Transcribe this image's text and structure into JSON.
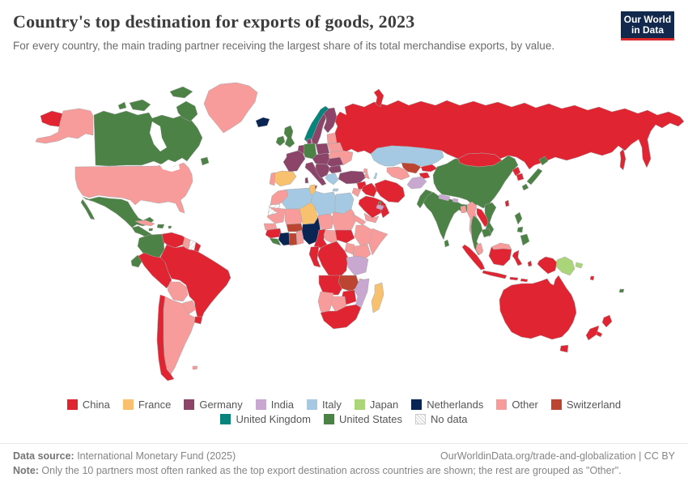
{
  "header": {
    "title": "Country's top destination for exports of goods, 2023",
    "subtitle": "For every country, the main trading partner receiving the largest share of its total merchandise exports, by value.",
    "logo_line1": "Our World",
    "logo_line2": "in Data"
  },
  "chart_data": {
    "type": "choropleth",
    "title": "Country's top destination for exports of goods, 2023",
    "legend": [
      {
        "label": "China",
        "color": "#e12431"
      },
      {
        "label": "France",
        "color": "#f8c16f"
      },
      {
        "label": "Germany",
        "color": "#8c4569"
      },
      {
        "label": "India",
        "color": "#c8a7d0"
      },
      {
        "label": "Italy",
        "color": "#a6c9e3"
      },
      {
        "label": "Japan",
        "color": "#aad579"
      },
      {
        "label": "Netherlands",
        "color": "#0a2553"
      },
      {
        "label": "Other",
        "color": "#f89b9b"
      },
      {
        "label": "Switzerland",
        "color": "#bb4530"
      },
      {
        "label": "United Kingdom",
        "color": "#07857c"
      },
      {
        "label": "United States",
        "color": "#4c8245"
      }
    ],
    "no_data_label": "No data",
    "regions": {
      "russia-chukotka": "China",
      "alaska": "Other",
      "canada": "United States",
      "canada-baffin": "United States",
      "canada-victoria": "United States",
      "canada-ellesmere": "United States",
      "canada-banks": "United States",
      "newfoundland": "United States",
      "greenland": "Other",
      "iceland": "Netherlands",
      "usa": "Other",
      "mexico": "United States",
      "baja": "United States",
      "central-america": "United States",
      "panama": "China",
      "cuba": "Other",
      "hispaniola": "United States",
      "jamaica": "United States",
      "puerto-rico": "United States",
      "colombia": "United States",
      "ecuador": "United States",
      "venezuela": "China",
      "guyana": "Other",
      "suriname": "No data",
      "french-guiana": "China",
      "brazil": "China",
      "peru": "China",
      "bolivia": "Other",
      "paraguay": "Other",
      "uruguay": "China",
      "chile": "China",
      "argentina": "Other",
      "falklands": "Other",
      "norway": "United Kingdom",
      "sweden": "Germany",
      "finland": "Germany",
      "denmark": "Germany",
      "united-kingdom": "United States",
      "ireland": "United States",
      "baltics": "Other",
      "belarus": "Other",
      "poland": "Germany",
      "germany": "United States",
      "benelux": "Germany",
      "france": "Germany",
      "spain": "France",
      "portugal": "Other",
      "italy": "Germany",
      "sicily": "Germany",
      "sardinia": "Germany",
      "central-europe": "Germany",
      "ukraine": "Other",
      "romania": "Germany",
      "balkans": "Germany",
      "bulgaria": "Germany",
      "greece": "Italy",
      "crete": "Italy",
      "turkey": "Germany",
      "georgia": "Other",
      "armenia": "Other",
      "azerbaijan": "Italy",
      "russia": "China",
      "novaya-zemlya": "China",
      "sakhalin": "China",
      "kazakhstan": "Italy",
      "turkmenistan": "Other",
      "uzbekistan": "Switzerland",
      "kyrgyzstan": "China",
      "tajikistan": "China",
      "afghanistan": "India",
      "pakistan": "United States",
      "syria": "China",
      "jordan-israel": "Other",
      "iraq": "China",
      "iran": "China",
      "saudi-arabia": "China",
      "yemen": "Other",
      "oman": "China",
      "uae": "India",
      "qatar": "United States",
      "china": "United States",
      "mongolia": "China",
      "north-korea": "China",
      "south-korea": "China",
      "japan-hokkaido": "United States",
      "japan-honshu": "United States",
      "japan-kyushu": "United States",
      "taiwan": "China",
      "india": "United States",
      "nepal": "India",
      "bhutan": "India",
      "bangladesh": "Other",
      "sri-lanka": "United States",
      "myanmar": "Other",
      "laos": "China",
      "thailand": "United States",
      "vietnam": "United States",
      "cambodia": "United States",
      "malaysia": "Other",
      "malaysia-borneo": "Other",
      "sumatra": "China",
      "java": "China",
      "kalimantan": "China",
      "sulawesi": "China",
      "lesser-sunda-1": "China",
      "lesser-sunda-2": "China",
      "maluku": "China",
      "west-papua": "China",
      "papua-new-guinea": "Japan",
      "new-britain": "Japan",
      "philippines-luzon": "United States",
      "philippines-visayas": "United States",
      "philippines-mindanao": "United States",
      "fiji": "United States",
      "vanuatu": "China",
      "new-caledonia": "China",
      "australia": "China",
      "tasmania": "China",
      "nz-north": "China",
      "nz-south": "China",
      "morocco": "Other",
      "western-sahara": "No data",
      "algeria": "Italy",
      "tunisia": "France",
      "libya": "Italy",
      "egypt": "Italy",
      "mauritania": "Other",
      "mali": "Other",
      "niger": "France",
      "chad": "Other",
      "sudan": "Other",
      "eritrea": "Other",
      "senegal": "Other",
      "guinea": "China",
      "liberia": "United States",
      "ivory-coast": "Netherlands",
      "ghana": "Switzerland",
      "togo-benin": "Other",
      "burkina-faso": "Switzerland",
      "nigeria": "Netherlands",
      "cameroon": "China",
      "central-african-republic": "Other",
      "south-sudan": "China",
      "ethiopia": "Other",
      "somalia": "Other",
      "kenya": "Other",
      "uganda": "Other",
      "drc": "China",
      "gabon-congo": "China",
      "tanzania": "India",
      "angola": "China",
      "zambia": "Switzerland",
      "malawi": "Other",
      "mozambique": "India",
      "zimbabwe": "China",
      "botswana": "Other",
      "namibia": "Other",
      "south-africa": "China",
      "madagascar": "France"
    }
  },
  "footer": {
    "source_label": "Data source:",
    "source_text": " International Monetary Fund (2025)",
    "right_text": "OurWorldinData.org/trade-and-globalization | CC BY",
    "note_label": "Note:",
    "note_text": " Only the 10 partners most often ranked as the top export destination across countries are shown; the rest are grouped as \"Other\"."
  }
}
